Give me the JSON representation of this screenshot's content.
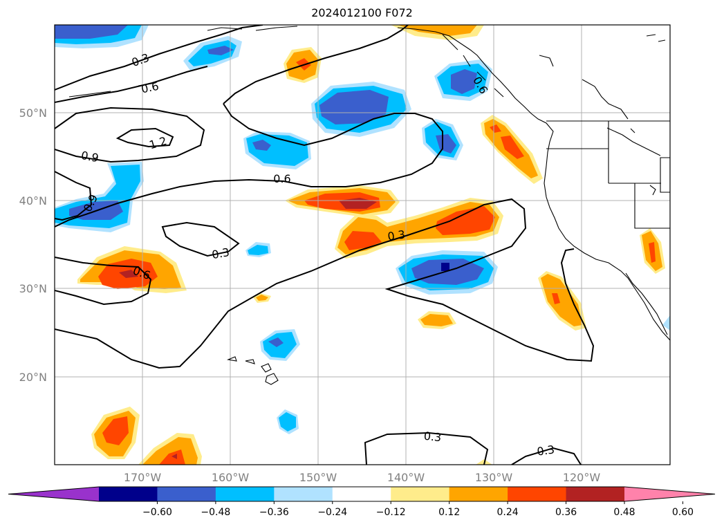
{
  "title": "2024012100 F072",
  "map": {
    "projection": "PlateCarree",
    "lon_range": [
      -180,
      -110
    ],
    "lat_range": [
      10,
      60
    ],
    "gridlines": true,
    "lon_ticks": [
      "170°W",
      "160°W",
      "150°W",
      "140°W",
      "130°W",
      "120°W"
    ],
    "lat_ticks": [
      "50°N",
      "40°N",
      "30°N",
      "20°N"
    ]
  },
  "contour_labels": [
    "0.3",
    "0.6",
    "1.2",
    "0.9",
    "0.6",
    "0.9",
    "0.3",
    "0.6",
    "0.3",
    "0.3",
    "0.3",
    "0.6"
  ],
  "colorbar": {
    "tick_labels": [
      "−0.60",
      "−0.48",
      "−0.36",
      "−0.24",
      "−0.12",
      "0.12",
      "0.24",
      "0.36",
      "0.48",
      "0.60"
    ],
    "colors": [
      "#9932cc",
      "#00008b",
      "#3a5fcd",
      "#00bfff",
      "#b0e2ff",
      "#ffffff",
      "#ffec8b",
      "#ffa500",
      "#ff4500",
      "#b22222",
      "#ff82ab"
    ],
    "extend": "both"
  }
}
